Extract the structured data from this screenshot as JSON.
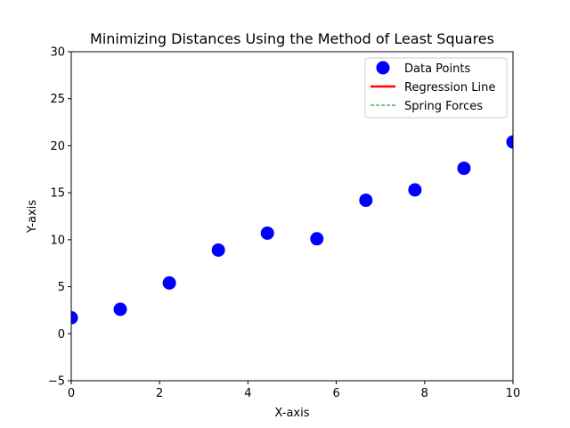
{
  "chart_data": {
    "type": "scatter",
    "title": "Minimizing Distances Using the Method of Least Squares",
    "xlabel": "X-axis",
    "ylabel": "Y-axis",
    "xlim": [
      0,
      10
    ],
    "ylim": [
      -5,
      30
    ],
    "xticks": [
      0,
      2,
      4,
      6,
      8,
      10
    ],
    "yticks": [
      -5,
      0,
      5,
      10,
      15,
      20,
      25,
      30
    ],
    "xtick_labels": [
      "0",
      "2",
      "4",
      "6",
      "8",
      "10"
    ],
    "ytick_labels": [
      "−5",
      "0",
      "5",
      "10",
      "15",
      "20",
      "25",
      "30"
    ],
    "grid": false,
    "legend_position": "top-right",
    "series": [
      {
        "name": "Data Points",
        "kind": "scatter",
        "color": "#0000ff",
        "x": [
          0,
          1.11,
          2.22,
          3.33,
          4.44,
          5.56,
          6.67,
          7.78,
          8.89,
          10
        ],
        "y": [
          1.7,
          2.6,
          5.4,
          8.9,
          10.7,
          10.1,
          14.2,
          15.3,
          17.6,
          20.4
        ]
      },
      {
        "name": "Regression Line",
        "kind": "line",
        "color": "#ff0000",
        "x": [],
        "y": []
      },
      {
        "name": "Spring Forces",
        "kind": "dashed-line",
        "color": "#008000",
        "x": [],
        "y": []
      }
    ]
  }
}
